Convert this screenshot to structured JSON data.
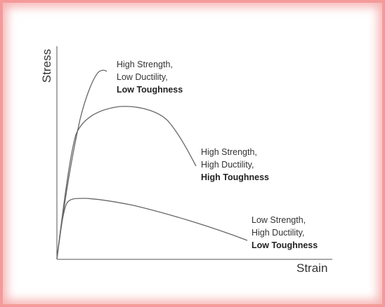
{
  "diagram": {
    "ylabel": "Stress",
    "xlabel": "Strain",
    "curves": [
      {
        "id": "high-strength-low-ductility",
        "lines": [
          "High Strength,",
          "Low Ductility,",
          "Low Toughness"
        ]
      },
      {
        "id": "high-strength-high-ductility",
        "lines": [
          "High Strength,",
          "High Ductility,",
          "High Toughness"
        ]
      },
      {
        "id": "low-strength-high-ductility",
        "lines": [
          "Low Strength,",
          "High Ductility,",
          "Low Toughness"
        ]
      }
    ]
  }
}
